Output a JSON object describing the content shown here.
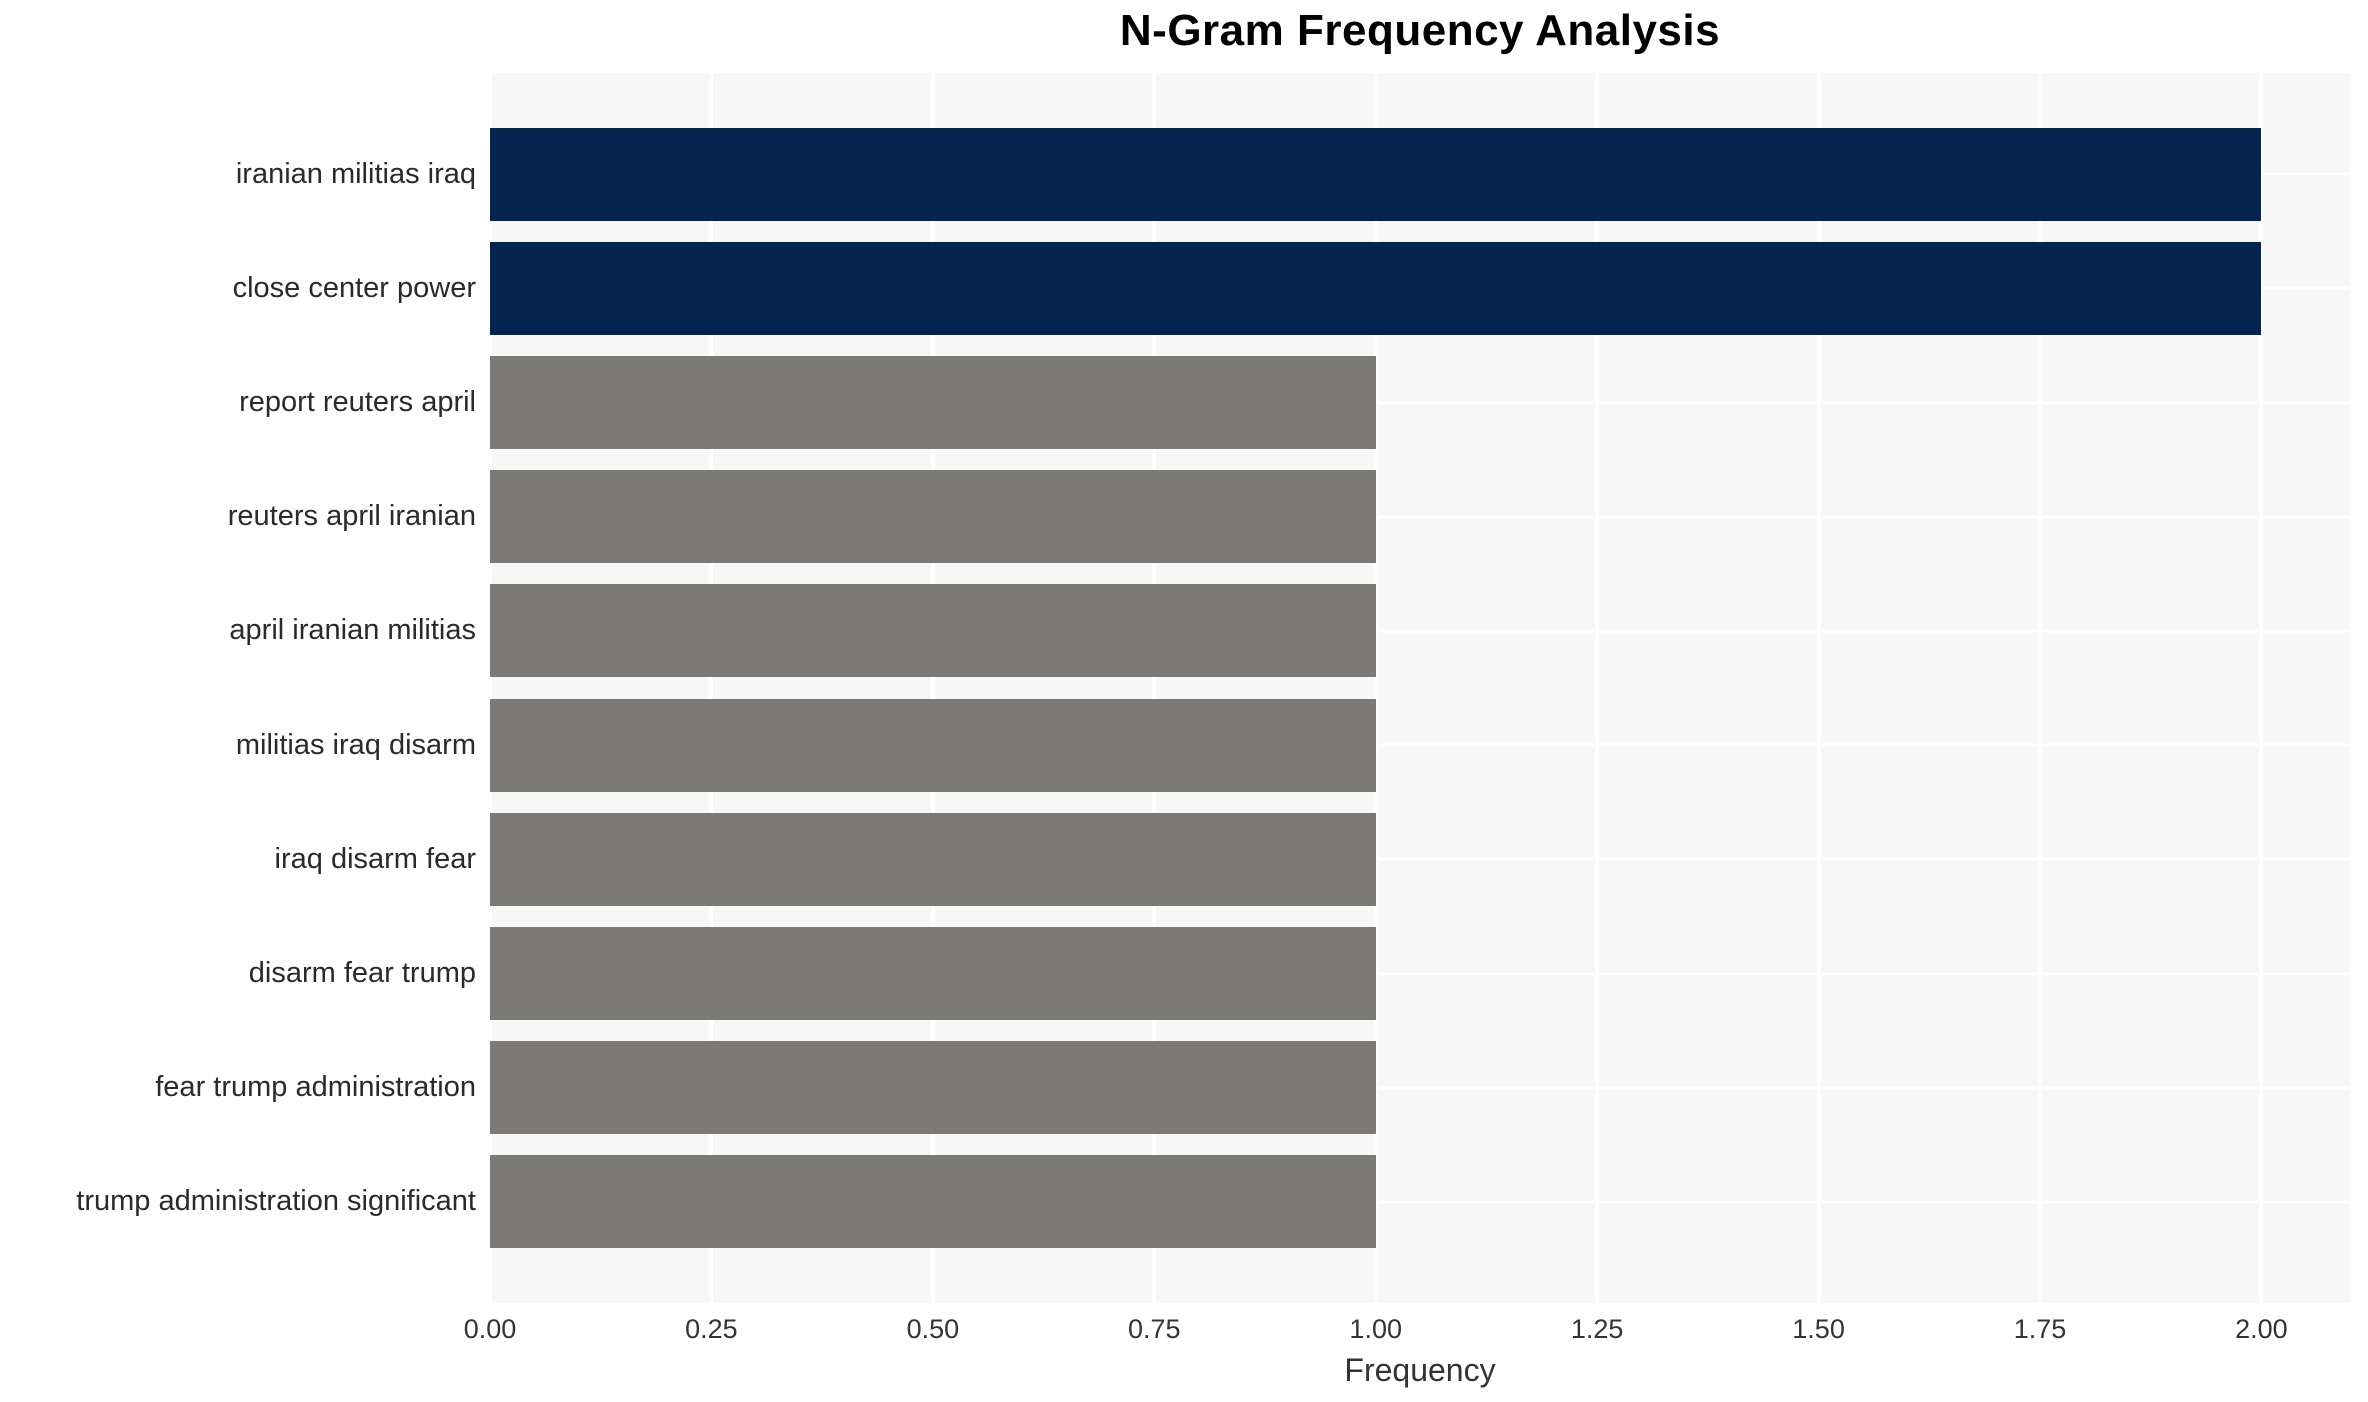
{
  "chart_data": {
    "type": "bar",
    "orientation": "horizontal",
    "title": "N-Gram Frequency Analysis",
    "xlabel": "Frequency",
    "ylabel": "",
    "categories": [
      "iranian militias iraq",
      "close center power",
      "report reuters april",
      "reuters april iranian",
      "april iranian militias",
      "militias iraq disarm",
      "iraq disarm fear",
      "disarm fear trump",
      "fear trump administration",
      "trump administration significant"
    ],
    "values": [
      2,
      2,
      1,
      1,
      1,
      1,
      1,
      1,
      1,
      1
    ],
    "bar_colors": [
      "#03244e",
      "#03244e",
      "#7b7a77",
      "#7b7a77",
      "#7b7a77",
      "#7b7a77",
      "#7b7a77",
      "#7b7a77",
      "#7b7a77",
      "#7b7a77"
    ],
    "xlim": [
      0,
      2.1
    ],
    "xticks": [
      0,
      0.25,
      0.5,
      0.75,
      1,
      1.25,
      1.5,
      1.75,
      2
    ],
    "xtick_labels": [
      "0.00",
      "0.25",
      "0.50",
      "0.75",
      "1.00",
      "1.25",
      "1.50",
      "1.75",
      "2.00"
    ],
    "grid": true,
    "legend": false,
    "colors": {
      "highlight_bar": "#03244e",
      "default_bar": "#7b7a77",
      "plot_background": "#f7f7f7",
      "gridline": "#ffffff",
      "title_text": "#000000",
      "tick_text": "#333333",
      "label_text": "#2a2a2a"
    }
  }
}
